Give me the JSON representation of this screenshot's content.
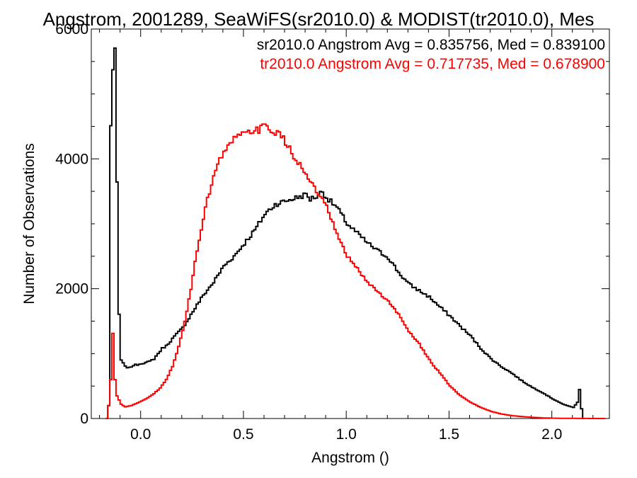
{
  "chart_data": {
    "type": "line",
    "title": "Angstrom, 2001289, SeaWiFS(sr2010.0) & MODIST(tr2010.0), Mes",
    "xlabel": "Angstrom ()",
    "ylabel": "Number of Observations",
    "xlim": [
      -0.24,
      2.28
    ],
    "ylim": [
      0,
      6000
    ],
    "xticks": [
      {
        "value": 0.0,
        "label": "0.0"
      },
      {
        "value": 0.5,
        "label": "0.5"
      },
      {
        "value": 1.0,
        "label": "1.0"
      },
      {
        "value": 1.5,
        "label": "1.5"
      },
      {
        "value": 2.0,
        "label": "2.0"
      }
    ],
    "yticks": [
      {
        "value": 0,
        "label": "0"
      },
      {
        "value": 2000,
        "label": "2000"
      },
      {
        "value": 4000,
        "label": "4000"
      },
      {
        "value": 6000,
        "label": "6000"
      }
    ],
    "grid": false,
    "legend_position": "top-right",
    "series": [
      {
        "name": "sr2010.0 Angstrom Avg = 0.835756, Med = 0.839100",
        "color": "#000000",
        "x": [
          -0.17,
          -0.16,
          -0.15,
          -0.14,
          -0.13,
          -0.12,
          -0.11,
          -0.1,
          -0.08,
          -0.06,
          -0.04,
          -0.02,
          0.0,
          0.02,
          0.04,
          0.06,
          0.08,
          0.1,
          0.12,
          0.15,
          0.2,
          0.25,
          0.3,
          0.35,
          0.4,
          0.45,
          0.5,
          0.55,
          0.6,
          0.65,
          0.7,
          0.75,
          0.8,
          0.82,
          0.85,
          0.88,
          0.9,
          0.95,
          1.0,
          1.05,
          1.1,
          1.15,
          1.2,
          1.25,
          1.3,
          1.35,
          1.4,
          1.45,
          1.5,
          1.55,
          1.6,
          1.65,
          1.7,
          1.75,
          1.8,
          1.85,
          1.9,
          1.95,
          2.0,
          2.05,
          2.1,
          2.12,
          2.13,
          2.14,
          2.15
        ],
        "y": [
          0,
          200,
          4500,
          5400,
          5700,
          3600,
          1600,
          900,
          800,
          780,
          820,
          830,
          850,
          860,
          880,
          920,
          1000,
          1080,
          1120,
          1230,
          1400,
          1650,
          1900,
          2100,
          2350,
          2500,
          2700,
          2900,
          3150,
          3300,
          3350,
          3400,
          3450,
          3380,
          3420,
          3500,
          3400,
          3250,
          3000,
          2850,
          2700,
          2580,
          2480,
          2250,
          2070,
          1970,
          1870,
          1720,
          1580,
          1420,
          1270,
          1080,
          920,
          800,
          700,
          580,
          480,
          400,
          300,
          220,
          170,
          250,
          450,
          150,
          0
        ]
      },
      {
        "name": "tr2010.0 Angstrom Avg = 0.717735, Med = 0.678900",
        "color": "#ff0000",
        "x": [
          -0.17,
          -0.16,
          -0.15,
          -0.14,
          -0.13,
          -0.12,
          -0.1,
          -0.08,
          -0.05,
          -0.02,
          0.0,
          0.03,
          0.06,
          0.09,
          0.12,
          0.15,
          0.18,
          0.21,
          0.24,
          0.27,
          0.3,
          0.33,
          0.36,
          0.39,
          0.42,
          0.45,
          0.48,
          0.51,
          0.54,
          0.57,
          0.6,
          0.63,
          0.66,
          0.69,
          0.72,
          0.75,
          0.78,
          0.81,
          0.84,
          0.87,
          0.9,
          0.93,
          0.96,
          1.0,
          1.05,
          1.1,
          1.15,
          1.2,
          1.25,
          1.3,
          1.35,
          1.4,
          1.45,
          1.5,
          1.55,
          1.6,
          1.65,
          1.7,
          1.75,
          1.8,
          1.85,
          1.9,
          1.95,
          2.0,
          2.05,
          2.1,
          2.15,
          2.2,
          2.25
        ],
        "y": [
          0,
          200,
          600,
          1300,
          600,
          350,
          220,
          180,
          200,
          240,
          270,
          320,
          380,
          470,
          600,
          800,
          1100,
          1500,
          2000,
          2600,
          3100,
          3500,
          3850,
          4050,
          4200,
          4300,
          4350,
          4400,
          4420,
          4450,
          4500,
          4450,
          4400,
          4300,
          4150,
          4000,
          3850,
          3700,
          3550,
          3400,
          3250,
          3000,
          2750,
          2500,
          2300,
          2100,
          1950,
          1800,
          1600,
          1350,
          1150,
          900,
          700,
          500,
          350,
          250,
          170,
          110,
          70,
          45,
          30,
          18,
          10,
          6,
          3,
          2,
          1,
          0,
          0
        ]
      }
    ]
  }
}
